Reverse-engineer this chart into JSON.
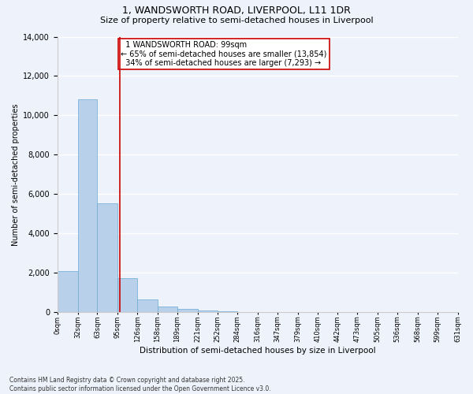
{
  "title1": "1, WANDSWORTH ROAD, LIVERPOOL, L11 1DR",
  "title2": "Size of property relative to semi-detached houses in Liverpool",
  "xlabel": "Distribution of semi-detached houses by size in Liverpool",
  "ylabel": "Number of semi-detached properties",
  "property_size": 99,
  "property_label": "1 WANDSWORTH ROAD: 99sqm",
  "pct_smaller": 65,
  "count_smaller": 13854,
  "pct_larger": 34,
  "count_larger": 7293,
  "bin_edges": [
    0,
    32,
    63,
    95,
    126,
    158,
    189,
    221,
    252,
    284,
    316,
    347,
    379,
    410,
    442,
    473,
    505,
    536,
    568,
    599,
    631
  ],
  "bin_counts": [
    2100,
    10800,
    5550,
    1750,
    650,
    280,
    170,
    90,
    55,
    0,
    0,
    0,
    0,
    0,
    0,
    0,
    0,
    0,
    0,
    0
  ],
  "bar_color": "#b8d0ea",
  "bar_edge_color": "#6aaad4",
  "vline_color": "#cc0000",
  "vline_x": 99,
  "annotation_box_color": "#cc0000",
  "background_color": "#eef2fb",
  "grid_color": "#ffffff",
  "ylim": [
    0,
    14000
  ],
  "footnote1": "Contains HM Land Registry data © Crown copyright and database right 2025.",
  "footnote2": "Contains public sector information licensed under the Open Government Licence v3.0."
}
